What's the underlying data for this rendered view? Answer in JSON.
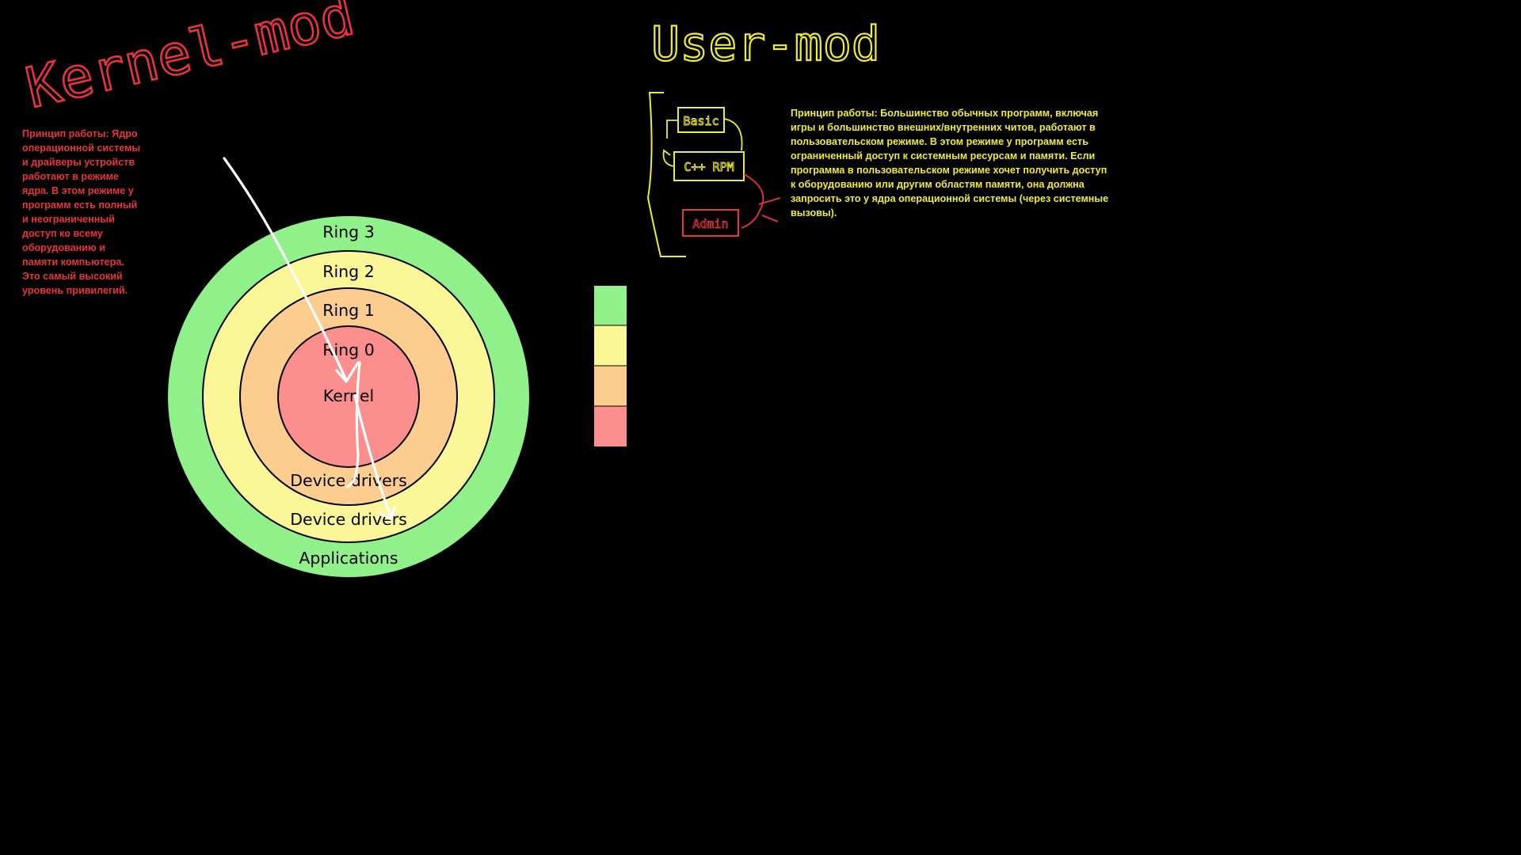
{
  "headings": {
    "kernel": "Kernel-mod",
    "user": "User-mod"
  },
  "notes": {
    "kernel": "Принцип работы: Ядро операционной системы и драйверы устройств работают в режиме ядра. В этом режиме у программ есть полный и неограниченный доступ ко всему оборудованию и памяти компьютера. Это самый высокий уровень привилегий.",
    "user": "Принцип работы: Большинство обычных программ, включая игры и большинство внешних/внутренних читов, работают в пользовательском режиме. В этом режиме у программ есть ограниченный доступ к системным ресурсам и памяти. Если программа в пользовательском режиме хочет получить доступ к оборудованию или другим областям памяти, она должна запросить это у ядра операционной системы (через системные вызовы)."
  },
  "rings": {
    "ring3": "Ring 3",
    "ring2": "Ring 2",
    "ring1": "Ring 1",
    "ring0": "Ring 0",
    "kernel": "Kernel",
    "drivers_inner": "Device drivers",
    "drivers_outer": "Device drivers",
    "applications": "Applications"
  },
  "sketch": {
    "box_basic": "Basic",
    "box_rpm": "C++ RPM",
    "box_admin": "Admin"
  },
  "colors": {
    "background": "#000000",
    "ring3": "#90f08a",
    "ring2": "#fbf798",
    "ring1": "#fdcc8f",
    "ring0": "#fc8e8d",
    "kernel_text": "#e8343a",
    "user_text": "#f0ec30",
    "arrow": "#ffffff"
  }
}
